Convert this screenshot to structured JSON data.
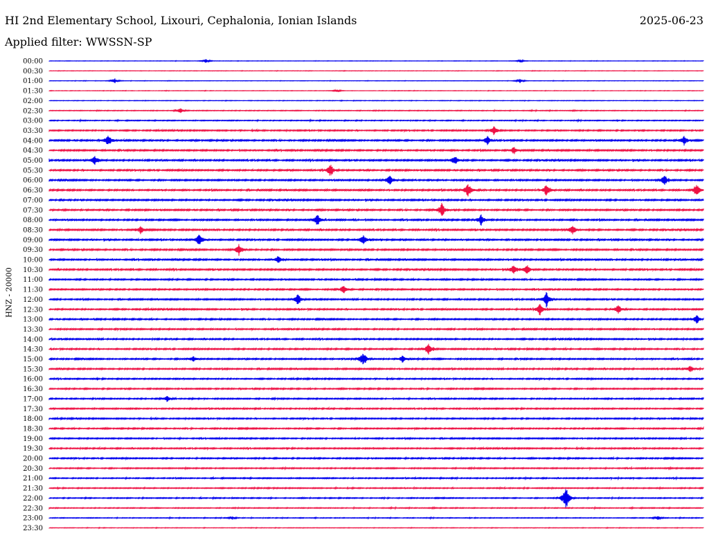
{
  "header": {
    "title": "HI 2nd Elementary School, Lixouri, Cephalonia, Ionian Islands",
    "date": "2025-06-23",
    "filter": "Applied filter: WWSSN-SP"
  },
  "colors": {
    "blue": "#0000ee",
    "red": "#ee1144"
  },
  "chart_data": {
    "type": "line",
    "ylabel": "HNZ - 20000",
    "tick_labels": [
      "00:00",
      "00:30",
      "01:00",
      "01:30",
      "02:00",
      "02:30",
      "03:00",
      "03:30",
      "04:00",
      "04:30",
      "05:00",
      "05:30",
      "06:00",
      "06:30",
      "07:00",
      "07:30",
      "08:00",
      "08:30",
      "09:00",
      "09:30",
      "10:00",
      "10:30",
      "11:00",
      "11:30",
      "12:00",
      "12:30",
      "13:00",
      "13:30",
      "14:00",
      "14:30",
      "15:00",
      "15:30",
      "16:00",
      "16:30",
      "17:00",
      "17:30",
      "18:00",
      "18:30",
      "19:00",
      "19:30",
      "20:00",
      "20:30",
      "21:00",
      "21:30",
      "22:00",
      "22:30",
      "23:00",
      "23:30"
    ],
    "line_colors": [
      "blue",
      "red"
    ],
    "noise_level": [
      0.15,
      0.15,
      0.15,
      0.15,
      0.2,
      0.3,
      0.35,
      0.5,
      0.6,
      0.6,
      0.6,
      0.6,
      0.6,
      0.6,
      0.6,
      0.6,
      0.6,
      0.6,
      0.6,
      0.6,
      0.6,
      0.6,
      0.55,
      0.55,
      0.55,
      0.55,
      0.55,
      0.55,
      0.55,
      0.55,
      0.55,
      0.55,
      0.5,
      0.5,
      0.5,
      0.5,
      0.5,
      0.5,
      0.5,
      0.5,
      0.5,
      0.45,
      0.45,
      0.4,
      0.4,
      0.35,
      0.3,
      0.2
    ],
    "events": [
      {
        "line": 0,
        "t": 0.24,
        "amp": 3
      },
      {
        "line": 0,
        "t": 0.72,
        "amp": 2
      },
      {
        "line": 2,
        "t": 0.1,
        "amp": 4
      },
      {
        "line": 2,
        "t": 0.72,
        "amp": 3
      },
      {
        "line": 3,
        "t": 0.44,
        "amp": 2
      },
      {
        "line": 5,
        "t": 0.2,
        "amp": 4
      },
      {
        "line": 7,
        "t": 0.68,
        "amp": 6
      },
      {
        "line": 8,
        "t": 0.09,
        "amp": 8
      },
      {
        "line": 8,
        "t": 0.67,
        "amp": 7
      },
      {
        "line": 8,
        "t": 0.97,
        "amp": 7
      },
      {
        "line": 9,
        "t": 0.71,
        "amp": 5
      },
      {
        "line": 10,
        "t": 0.07,
        "amp": 7
      },
      {
        "line": 10,
        "t": 0.62,
        "amp": 7
      },
      {
        "line": 11,
        "t": 0.43,
        "amp": 9
      },
      {
        "line": 12,
        "t": 0.52,
        "amp": 9
      },
      {
        "line": 12,
        "t": 0.94,
        "amp": 7
      },
      {
        "line": 13,
        "t": 0.64,
        "amp": 10
      },
      {
        "line": 13,
        "t": 0.76,
        "amp": 9
      },
      {
        "line": 13,
        "t": 0.99,
        "amp": 8
      },
      {
        "line": 15,
        "t": 0.6,
        "amp": 10
      },
      {
        "line": 16,
        "t": 0.41,
        "amp": 9
      },
      {
        "line": 16,
        "t": 0.66,
        "amp": 8
      },
      {
        "line": 17,
        "t": 0.14,
        "amp": 6
      },
      {
        "line": 17,
        "t": 0.8,
        "amp": 7
      },
      {
        "line": 18,
        "t": 0.23,
        "amp": 10
      },
      {
        "line": 18,
        "t": 0.48,
        "amp": 8
      },
      {
        "line": 19,
        "t": 0.29,
        "amp": 8
      },
      {
        "line": 20,
        "t": 0.35,
        "amp": 6
      },
      {
        "line": 21,
        "t": 0.71,
        "amp": 8
      },
      {
        "line": 21,
        "t": 0.73,
        "amp": 7
      },
      {
        "line": 23,
        "t": 0.45,
        "amp": 6
      },
      {
        "line": 24,
        "t": 0.38,
        "amp": 8
      },
      {
        "line": 24,
        "t": 0.76,
        "amp": 11
      },
      {
        "line": 25,
        "t": 0.75,
        "amp": 9
      },
      {
        "line": 25,
        "t": 0.87,
        "amp": 7
      },
      {
        "line": 26,
        "t": 0.99,
        "amp": 6
      },
      {
        "line": 29,
        "t": 0.58,
        "amp": 9
      },
      {
        "line": 30,
        "t": 0.48,
        "amp": 11
      },
      {
        "line": 30,
        "t": 0.54,
        "amp": 5
      },
      {
        "line": 30,
        "t": 0.22,
        "amp": 4
      },
      {
        "line": 31,
        "t": 0.98,
        "amp": 5
      },
      {
        "line": 34,
        "t": 0.18,
        "amp": 4
      },
      {
        "line": 44,
        "t": 0.79,
        "amp": 20
      },
      {
        "line": 46,
        "t": 0.93,
        "amp": 3
      },
      {
        "line": 46,
        "t": 0.28,
        "amp": 2
      }
    ]
  }
}
